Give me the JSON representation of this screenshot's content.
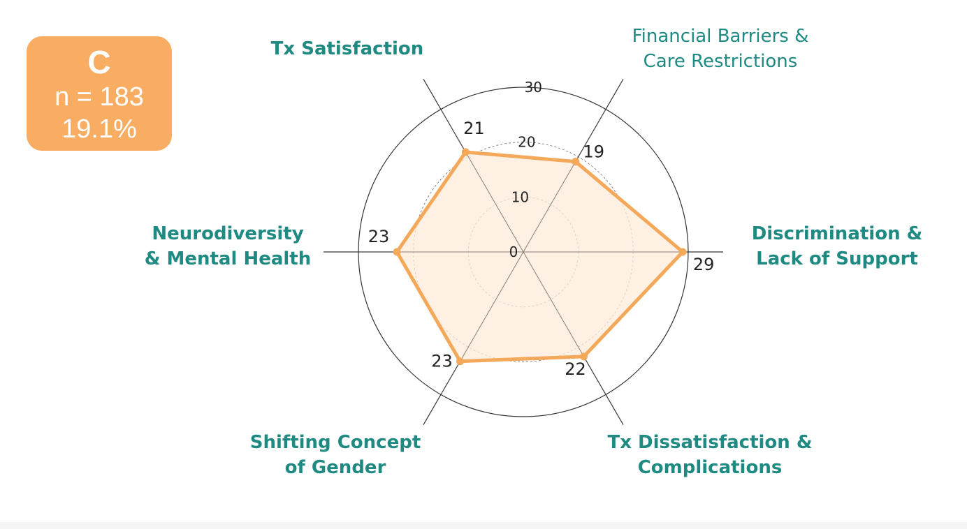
{
  "badge": {
    "letter": "C",
    "n_text": "n = 183",
    "pct_text": "19.1%",
    "color": "#f8ad63"
  },
  "chart_data": {
    "type": "radar",
    "axes": [
      {
        "label": [
          "Tx Satisfaction"
        ],
        "bold": true
      },
      {
        "label": [
          "Financial Barriers &",
          "Care Restrictions"
        ],
        "bold": false
      },
      {
        "label": [
          "Discrimination &",
          "Lack of Support"
        ],
        "bold": true
      },
      {
        "label": [
          "Tx Dissatisfaction &",
          "Complications"
        ],
        "bold": true
      },
      {
        "label": [
          "Shifting Concept",
          "of Gender"
        ],
        "bold": true
      },
      {
        "label": [
          "Neurodiversity",
          "& Mental Health"
        ],
        "bold": true
      }
    ],
    "values": [
      21,
      19,
      29,
      22,
      23,
      23
    ],
    "value_labels": [
      "21",
      "19",
      "29",
      "22",
      "23",
      "23"
    ],
    "rlim": [
      0,
      30
    ],
    "ticks": [
      0,
      10,
      20,
      30
    ],
    "tick_labels": [
      "0",
      "10",
      "20",
      "30"
    ],
    "colors": {
      "line": "#f4a95a",
      "fill": "#fdebd8",
      "label": "#1e8a82"
    }
  }
}
